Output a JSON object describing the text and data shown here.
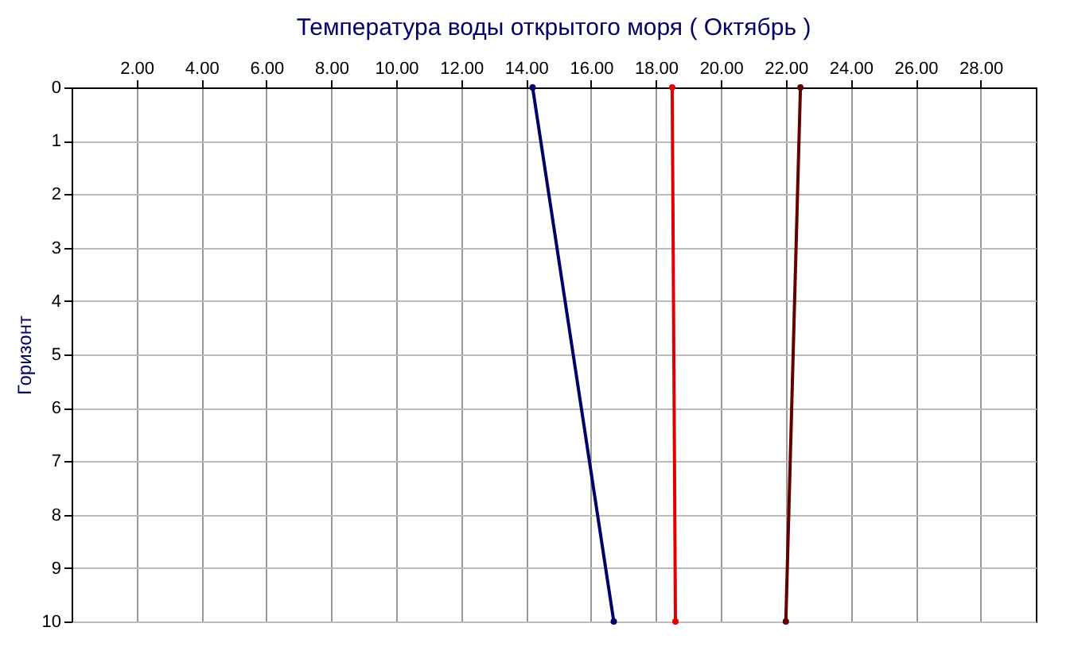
{
  "chart_data": {
    "type": "line",
    "title": "Температура воды открытого моря    ( Октябрь )",
    "ylabel": "Горизонт",
    "xlim": [
      0,
      29.7
    ],
    "ylim": [
      10,
      0
    ],
    "xticks": [
      {
        "value": 2,
        "label": "2.00"
      },
      {
        "value": 4,
        "label": "4.00"
      },
      {
        "value": 6,
        "label": "6.00"
      },
      {
        "value": 8,
        "label": "8.00"
      },
      {
        "value": 10,
        "label": "10.00"
      },
      {
        "value": 12,
        "label": "12.00"
      },
      {
        "value": 14,
        "label": "14.00"
      },
      {
        "value": 16,
        "label": "16.00"
      },
      {
        "value": 18,
        "label": "18.00"
      },
      {
        "value": 20,
        "label": "20.00"
      },
      {
        "value": 22,
        "label": "22.00"
      },
      {
        "value": 24,
        "label": "24.00"
      },
      {
        "value": 26,
        "label": "26.00"
      },
      {
        "value": 28,
        "label": "28.00"
      }
    ],
    "yticks": [
      0,
      1,
      2,
      3,
      4,
      5,
      6,
      7,
      8,
      9,
      10
    ],
    "grid": true,
    "marker": "circle",
    "line_style": "solid",
    "legend": false,
    "series": [
      {
        "color": "#000066",
        "x": [
          14.2,
          16.7
        ],
        "values": [
          0,
          10
        ]
      },
      {
        "color": "#e00000",
        "x": [
          18.5,
          18.6
        ],
        "values": [
          0,
          10
        ]
      },
      {
        "color": "#600000",
        "x": [
          22.45,
          22.0
        ],
        "values": [
          0,
          10
        ]
      }
    ]
  }
}
